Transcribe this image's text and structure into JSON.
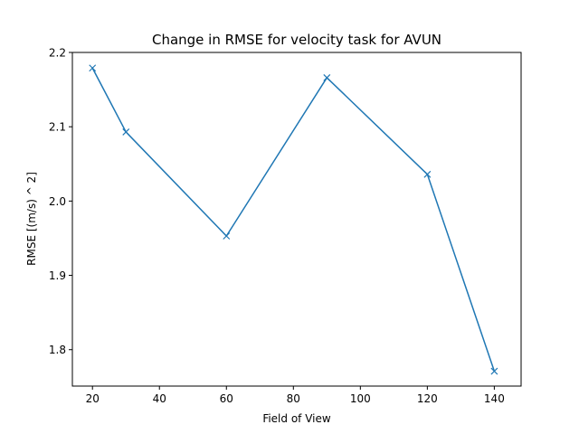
{
  "chart_data": {
    "type": "line",
    "title": "Change in RMSE for velocity task for AVUN",
    "xlabel": "Field of View",
    "ylabel": "RMSE [(m/s) ^ 2]",
    "x": [
      20,
      30,
      60,
      90,
      120,
      140
    ],
    "series": [
      {
        "values": [
          2.179,
          2.093,
          1.953,
          2.166,
          2.036,
          1.771
        ],
        "color": "#1f77b4",
        "marker": "x"
      }
    ],
    "xlim": [
      14,
      148
    ],
    "ylim": [
      1.751,
      2.2
    ],
    "xticks": [
      20,
      40,
      60,
      80,
      100,
      120,
      140
    ],
    "xtick_labels": [
      "20",
      "40",
      "60",
      "80",
      "100",
      "120",
      "140"
    ],
    "yticks": [
      1.8,
      1.9,
      2.0,
      2.1,
      2.2
    ],
    "ytick_labels": [
      "1.8",
      "1.9",
      "2.0",
      "2.1",
      "2.2"
    ],
    "grid": false,
    "legend": false
  }
}
